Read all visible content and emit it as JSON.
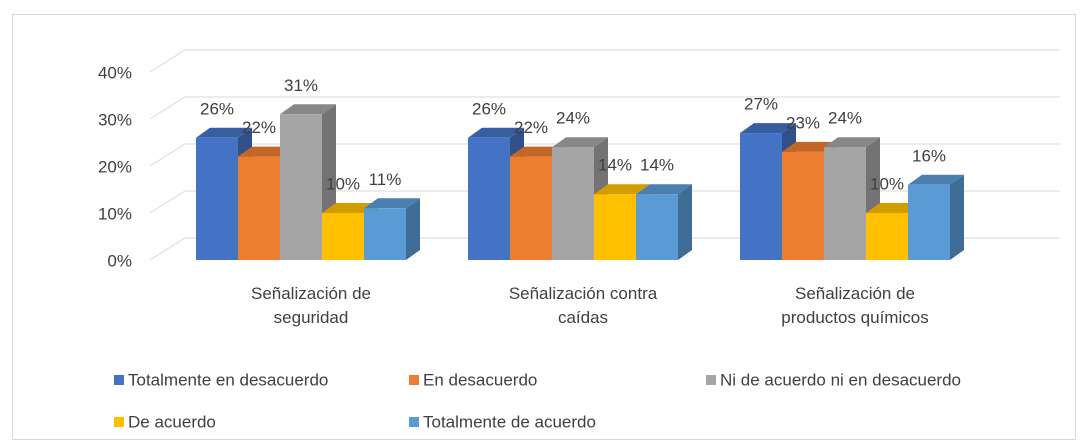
{
  "chart_data": {
    "type": "bar3d",
    "categories": [
      "Señalización de seguridad",
      "Señalización contra caídas",
      "Señalización de productos químicos"
    ],
    "series": [
      {
        "name": "Totalmente en desacuerdo",
        "color": "#4472c4",
        "values": [
          26,
          26,
          27
        ],
        "value_labels": [
          "26%",
          "26%",
          "27%"
        ]
      },
      {
        "name": "En desacuerdo",
        "color": "#ed7d31",
        "values": [
          22,
          22,
          23
        ],
        "value_labels": [
          "22%",
          "22%",
          "23%"
        ]
      },
      {
        "name": "Ni de acuerdo ni en desacuerdo",
        "color": "#a5a5a5",
        "values": [
          31,
          24,
          24
        ],
        "value_labels": [
          "31%",
          "24%",
          "24%"
        ]
      },
      {
        "name": "De acuerdo",
        "color": "#ffc000",
        "values": [
          10,
          14,
          10
        ],
        "value_labels": [
          "10%",
          "14%",
          "10%"
        ]
      },
      {
        "name": "Totalmente de acuerdo",
        "color": "#5b9bd5",
        "values": [
          11,
          14,
          16
        ],
        "value_labels": [
          "11%",
          "14%",
          "16%"
        ]
      }
    ],
    "ylim": [
      0,
      40
    ],
    "yticks": [
      {
        "value": 0,
        "label": "0%"
      },
      {
        "value": 10,
        "label": "10%"
      },
      {
        "value": 20,
        "label": "20%"
      },
      {
        "value": 30,
        "label": "30%"
      },
      {
        "value": 40,
        "label": "40%"
      }
    ],
    "grid": true,
    "legend": "bottom"
  }
}
